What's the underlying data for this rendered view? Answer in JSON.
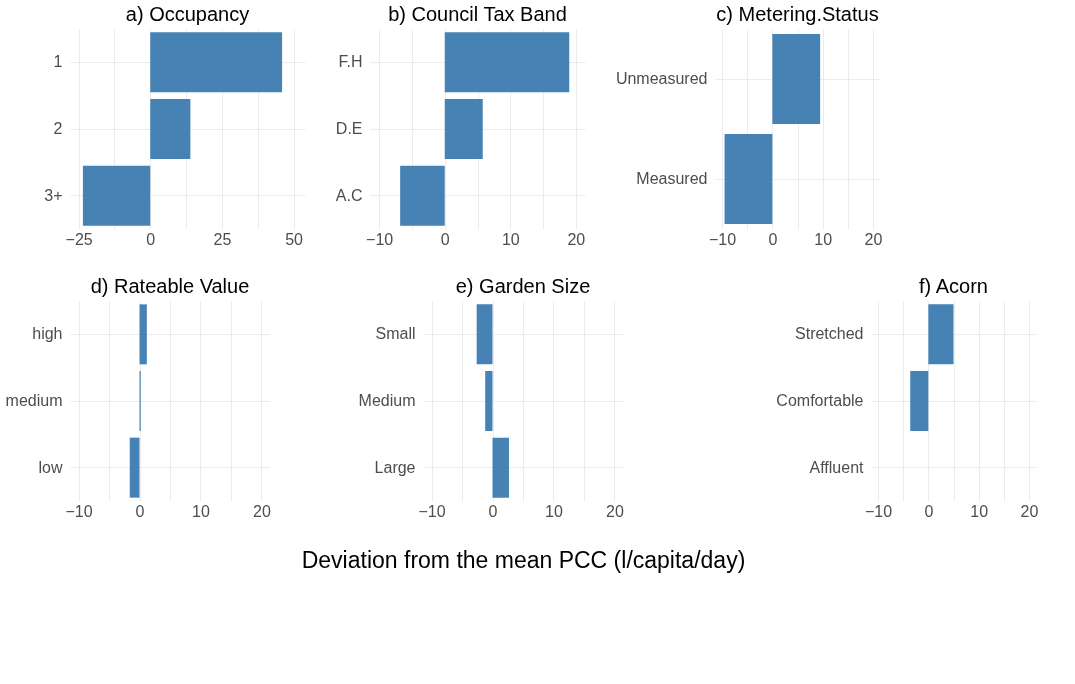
{
  "chart_data": [
    {
      "type": "bar",
      "orientation": "horizontal",
      "title": "a) Occupancy",
      "categories": [
        "1",
        "2",
        "3+"
      ],
      "values": [
        46,
        14,
        -23.5
      ],
      "color": "#4682b4",
      "xlim": [
        -28,
        54
      ],
      "xticks": [
        -25,
        {
          "value": -12.5,
          "label": null
        },
        0,
        {
          "value": 12.5,
          "label": null
        },
        25,
        {
          "value": 37.5,
          "label": null
        },
        50
      ],
      "grid": true
    },
    {
      "type": "bar",
      "orientation": "horizontal",
      "title": "b) Council Tax Band",
      "categories": [
        "F.H",
        "D.E",
        "A.C"
      ],
      "values": [
        19,
        5.8,
        -6.8
      ],
      "color": "#4682b4",
      "xlim": [
        -11.4,
        21.4
      ],
      "xticks": [
        -10,
        {
          "value": -5,
          "label": null
        },
        0,
        {
          "value": 5,
          "label": null
        },
        10,
        {
          "value": 15,
          "label": null
        },
        20
      ],
      "grid": true
    },
    {
      "type": "bar",
      "orientation": "horizontal",
      "title": "c) Metering.Status",
      "categories": [
        "Unmeasured",
        "Measured"
      ],
      "values": [
        9.5,
        -9.5
      ],
      "color": "#4682b4",
      "xlim": [
        -11.4,
        21.4
      ],
      "xticks": [
        -10,
        {
          "value": -5,
          "label": null
        },
        0,
        {
          "value": 5,
          "label": null
        },
        10,
        {
          "value": 15,
          "label": null
        },
        20
      ],
      "grid": true
    },
    {
      "type": "bar",
      "orientation": "horizontal",
      "title": "d) Rateable Value",
      "categories": [
        "high",
        "medium",
        "low"
      ],
      "values": [
        1.2,
        0.2,
        -1.6
      ],
      "color": "#4682b4",
      "xlim": [
        -11.4,
        21.4
      ],
      "xticks": [
        -10,
        {
          "value": -5,
          "label": null
        },
        0,
        {
          "value": 5,
          "label": null
        },
        10,
        {
          "value": 15,
          "label": null
        },
        20
      ],
      "grid": true
    },
    {
      "type": "bar",
      "orientation": "horizontal",
      "title": "e) Garden Size",
      "xlabel": "Deviation from the mean PCC (l/capita/day)",
      "categories": [
        "Small",
        "Medium",
        "Large"
      ],
      "values": [
        -2.6,
        -1.2,
        2.7
      ],
      "color": "#4682b4",
      "xlim": [
        -11.4,
        21.4
      ],
      "xticks": [
        -10,
        {
          "value": -5,
          "label": null
        },
        0,
        {
          "value": 5,
          "label": null
        },
        10,
        {
          "value": 15,
          "label": null
        },
        20
      ],
      "grid": true
    },
    {
      "type": "bar",
      "orientation": "horizontal",
      "title": "f) Acorn",
      "categories": [
        "Stretched",
        "Comfortable",
        "Affluent"
      ],
      "values": [
        5,
        -3.6,
        0
      ],
      "color": "#4682b4",
      "xlim": [
        -11.4,
        21.4
      ],
      "xticks": [
        -10,
        {
          "value": -5,
          "label": null
        },
        0,
        {
          "value": 5,
          "label": null
        },
        10,
        {
          "value": 15,
          "label": null
        },
        20
      ],
      "grid": true
    }
  ]
}
